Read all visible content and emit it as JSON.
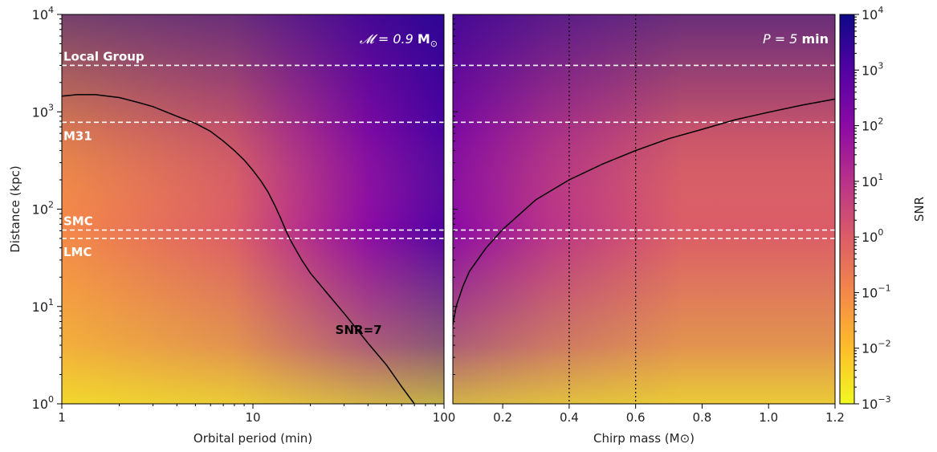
{
  "chart_data": [
    {
      "type": "heatmap",
      "panel": "left",
      "xlabel": "Orbital period (min)",
      "ylabel": "Distance (kpc)",
      "xscale": "log",
      "yscale": "log",
      "xlim": [
        1,
        100
      ],
      "ylim": [
        1,
        10000
      ],
      "x_ticks": [
        {
          "value": 1,
          "label": "1"
        },
        {
          "value": 10,
          "label": "10"
        },
        {
          "value": 100,
          "label": "100"
        }
      ],
      "y_ticks": [
        {
          "value": 1,
          "base": "10",
          "exp": "0"
        },
        {
          "value": 10,
          "base": "10",
          "exp": "1"
        },
        {
          "value": 100,
          "base": "10",
          "exp": "2"
        },
        {
          "value": 1000,
          "base": "10",
          "exp": "3"
        },
        {
          "value": 10000,
          "base": "10",
          "exp": "4"
        }
      ],
      "annotation": {
        "pre": "𝓜 = 0.9 ",
        "bold": "M",
        "sub": "⊙"
      },
      "reference_lines": [
        {
          "label": "Local Group",
          "distance_kpc": 3000,
          "label_position": "above"
        },
        {
          "label": "M31",
          "distance_kpc": 780,
          "label_position": "below"
        },
        {
          "label": "SMC",
          "distance_kpc": 61,
          "label_position": "above"
        },
        {
          "label": "LMC",
          "distance_kpc": 50,
          "label_position": "below"
        }
      ],
      "contour": {
        "label": "SNR=7",
        "x": [
          1,
          1.2,
          1.5,
          2,
          2.5,
          3,
          4,
          5,
          6,
          7,
          8,
          9,
          10,
          11,
          12,
          13,
          14,
          15,
          16,
          18,
          20,
          25,
          30,
          40,
          50,
          60,
          70
        ],
        "y": [
          1450,
          1500,
          1500,
          1400,
          1250,
          1130,
          900,
          760,
          630,
          500,
          400,
          320,
          250,
          195,
          150,
          110,
          80,
          58,
          45,
          30,
          22,
          13,
          8.5,
          4.2,
          2.5,
          1.5,
          1.0
        ]
      }
    },
    {
      "type": "heatmap",
      "panel": "right",
      "xlabel": "Chirp mass (M⊙)",
      "ylabel": "",
      "xscale": "linear",
      "yscale": "log",
      "xlim": [
        0.05,
        1.2
      ],
      "ylim": [
        1,
        10000
      ],
      "x_ticks": [
        0.2,
        0.4,
        0.6,
        0.8,
        1.0,
        1.2
      ],
      "x_tick_labels": [
        "0.2",
        "0.4",
        "0.6",
        "0.8",
        "1.0",
        "1.2"
      ],
      "annotation": {
        "pre": "P = 5 ",
        "bold": "min",
        "sub": ""
      },
      "vertical_lines": [
        0.4,
        0.6
      ],
      "reference_lines": [
        {
          "distance_kpc": 3000
        },
        {
          "distance_kpc": 780
        },
        {
          "distance_kpc": 61
        },
        {
          "distance_kpc": 50
        }
      ],
      "contour": {
        "x": [
          0.05,
          0.06,
          0.08,
          0.1,
          0.15,
          0.2,
          0.3,
          0.4,
          0.5,
          0.6,
          0.7,
          0.8,
          0.9,
          1.0,
          1.1,
          1.2
        ],
        "y": [
          6.5,
          10,
          16,
          23,
          40,
          62,
          125,
          200,
          290,
          400,
          530,
          660,
          830,
          990,
          1170,
          1350
        ]
      }
    }
  ],
  "colorbar": {
    "label": "SNR",
    "scale": "log",
    "range": [
      0.001,
      10000
    ],
    "colormap": "plasma",
    "colors": [
      "#0d0887",
      "#5302a3",
      "#8b0aa5",
      "#b83289",
      "#db5c68",
      "#f48849",
      "#febd2a",
      "#f0f921"
    ],
    "ticks": [
      {
        "value": 10000,
        "base": "10",
        "exp": "4"
      },
      {
        "value": 1000,
        "base": "10",
        "exp": "3"
      },
      {
        "value": 100,
        "base": "10",
        "exp": "2"
      },
      {
        "value": 10,
        "base": "10",
        "exp": "1"
      },
      {
        "value": 1,
        "base": "10",
        "exp": "0"
      },
      {
        "value": 0.1,
        "base": "10",
        "exp": "−1"
      },
      {
        "value": 0.01,
        "base": "10",
        "exp": "−2"
      },
      {
        "value": 0.001,
        "base": "10",
        "exp": "−3"
      }
    ]
  }
}
